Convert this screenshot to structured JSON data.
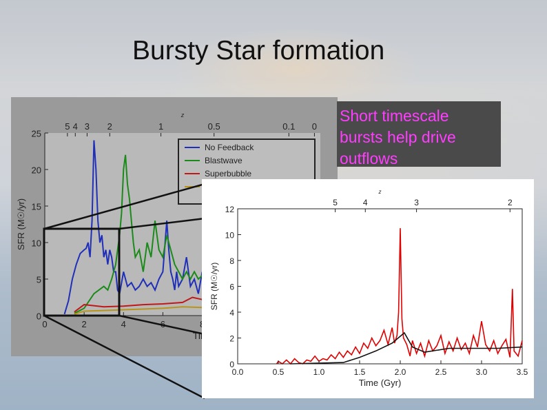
{
  "slide": {
    "title": "Bursty Star formation",
    "callout": [
      "Short timescale",
      "bursts help drive",
      "outflows"
    ]
  },
  "colors": {
    "callout_bg": "#4a4a4a",
    "callout_text": "#ff3cff",
    "no_feedback": "#1f2fb8",
    "blastwave": "#1a8a1a",
    "superbubble": "#c01818",
    "other": "#b8941a",
    "zoom_line": "#e00000"
  },
  "chart_data": [
    {
      "type": "line",
      "xlabel": "Time (Gyr)",
      "ylabel": "SFR (M☉/yr)",
      "top_axis_label": "z",
      "xlim": [
        0,
        14
      ],
      "ylim": [
        0,
        25
      ],
      "x_ticks": [
        0,
        2,
        4,
        6,
        8
      ],
      "x_tick_labels": [
        "0",
        "2",
        "4",
        "6",
        "8"
      ],
      "y_ticks": [
        0,
        5,
        10,
        15,
        20,
        25
      ],
      "y_tick_labels": [
        "0",
        "5",
        "10",
        "15",
        "20",
        "25"
      ],
      "top_ticks": [
        {
          "label": "5",
          "t": 1.15
        },
        {
          "label": "4",
          "t": 1.55
        },
        {
          "label": "3",
          "t": 2.15
        },
        {
          "label": "2",
          "t": 3.3
        },
        {
          "label": "1",
          "t": 5.9
        },
        {
          "label": "0.5",
          "t": 8.6
        },
        {
          "label": "0.1",
          "t": 12.4
        },
        {
          "label": "0",
          "t": 13.7
        }
      ],
      "legend": [
        "No Feedback",
        "Blastwave",
        "Superbubble",
        ""
      ],
      "series": [
        {
          "name": "No Feedback",
          "color": "#1f2fb8",
          "x": [
            1,
            1.2,
            1.4,
            1.6,
            1.8,
            2.0,
            2.1,
            2.2,
            2.3,
            2.4,
            2.5,
            2.6,
            2.7,
            2.8,
            2.9,
            3.0,
            3.1,
            3.2,
            3.3,
            3.4,
            3.5,
            3.6,
            3.7,
            3.8,
            4.0,
            4.2,
            4.4,
            4.6,
            4.8,
            5.0,
            5.2,
            5.4,
            5.6,
            5.8,
            6.0,
            6.2,
            6.3,
            6.4,
            6.5,
            6.6,
            6.7,
            6.8,
            7.0,
            7.2,
            7.4,
            7.6,
            7.8,
            8.0
          ],
          "y": [
            0.2,
            2,
            5,
            7,
            8.5,
            9,
            9.2,
            10,
            8,
            13,
            24,
            20,
            13,
            10,
            11,
            8,
            9,
            7,
            9,
            8,
            6,
            6,
            3.5,
            3,
            6,
            4,
            4.5,
            3.5,
            4,
            5,
            4,
            4.5,
            3.5,
            5,
            6,
            13,
            9,
            6,
            5,
            3.5,
            6,
            4,
            5,
            8,
            4,
            5,
            3,
            6
          ]
        },
        {
          "name": "Blastwave",
          "color": "#1a8a1a",
          "x": [
            1.5,
            2.0,
            2.5,
            3.0,
            3.2,
            3.4,
            3.5,
            3.6,
            3.7,
            3.8,
            3.9,
            4.0,
            4.1,
            4.2,
            4.3,
            4.4,
            4.5,
            4.6,
            4.8,
            5.0,
            5.2,
            5.4,
            5.6,
            5.8,
            6.0,
            6.2,
            6.4,
            6.6,
            6.8,
            7.0,
            7.2,
            7.4,
            7.6,
            7.8,
            8.0
          ],
          "y": [
            0.3,
            1,
            3,
            4,
            3.5,
            5,
            6,
            7,
            9,
            11,
            14,
            20,
            22,
            18,
            16,
            13,
            10,
            8,
            9,
            6,
            10,
            8,
            13,
            9,
            8,
            11,
            9,
            7,
            6,
            5,
            6,
            5,
            6,
            5,
            5.5
          ]
        },
        {
          "name": "Superbubble",
          "color": "#c01818",
          "x": [
            1.5,
            2,
            3,
            4,
            5,
            6,
            7,
            7.5,
            8
          ],
          "y": [
            0.5,
            1.5,
            1.2,
            1.3,
            1.5,
            1.6,
            1.8,
            2.5,
            2.2
          ]
        },
        {
          "name": "",
          "color": "#b8941a",
          "x": [
            1.5,
            2,
            3,
            4,
            5,
            6,
            7,
            8
          ],
          "y": [
            0.2,
            0.6,
            0.7,
            0.8,
            0.9,
            1.0,
            1.2,
            1.1
          ]
        }
      ]
    },
    {
      "type": "line",
      "xlabel": "Time (Gyr)",
      "ylabel": "SFR (M☉/yr)",
      "top_axis_label": "z",
      "xlim": [
        0,
        3.5
      ],
      "ylim": [
        0,
        12
      ],
      "x_ticks": [
        0,
        0.5,
        1,
        1.5,
        2,
        2.5,
        3,
        3.5
      ],
      "x_tick_labels": [
        "0.0",
        "0.5",
        "1.0",
        "1.5",
        "2.0",
        "2.5",
        "3.0",
        "3.5"
      ],
      "y_ticks": [
        0,
        2,
        4,
        6,
        8,
        10,
        12
      ],
      "y_tick_labels": [
        "0",
        "2",
        "4",
        "6",
        "8",
        "10",
        "12"
      ],
      "top_ticks": [
        {
          "label": "5",
          "t": 1.2
        },
        {
          "label": "4",
          "t": 1.57
        },
        {
          "label": "3",
          "t": 2.2
        },
        {
          "label": "2",
          "t": 3.35
        }
      ],
      "series": [
        {
          "name": "",
          "color": "#e00000",
          "x": [
            0.48,
            0.5,
            0.55,
            0.6,
            0.65,
            0.7,
            0.75,
            0.8,
            0.85,
            0.9,
            0.95,
            1.0,
            1.05,
            1.1,
            1.15,
            1.2,
            1.25,
            1.3,
            1.35,
            1.4,
            1.45,
            1.5,
            1.55,
            1.6,
            1.65,
            1.7,
            1.75,
            1.8,
            1.85,
            1.9,
            1.93,
            1.96,
            1.98,
            2.0,
            2.02,
            2.04,
            2.08,
            2.12,
            2.15,
            2.2,
            2.25,
            2.3,
            2.35,
            2.4,
            2.45,
            2.5,
            2.55,
            2.6,
            2.65,
            2.7,
            2.75,
            2.8,
            2.85,
            2.9,
            2.95,
            3.0,
            3.05,
            3.1,
            3.15,
            3.2,
            3.25,
            3.3,
            3.35,
            3.38,
            3.4,
            3.45,
            3.5
          ],
          "y": [
            0,
            0.2,
            0,
            0.3,
            0,
            0.4,
            0.1,
            0,
            0.3,
            0.2,
            0.6,
            0.2,
            0.4,
            0.3,
            0.7,
            0.4,
            0.9,
            0.5,
            1.0,
            0.7,
            1.3,
            0.8,
            1.6,
            1.2,
            2.0,
            1.4,
            1.8,
            2.6,
            1.5,
            2.8,
            1.6,
            2.2,
            4.0,
            10.5,
            3.5,
            2.0,
            1.5,
            0.6,
            1.8,
            0.8,
            1.6,
            0.6,
            1.8,
            1.0,
            1.4,
            2.2,
            0.8,
            1.7,
            1.0,
            2.0,
            1.1,
            1.6,
            0.8,
            2.2,
            1.3,
            3.3,
            1.5,
            1.0,
            1.8,
            0.8,
            1.4,
            1.9,
            0.5,
            5.8,
            1.0,
            0.6,
            1.8
          ]
        },
        {
          "name": "",
          "color": "#111111",
          "x": [
            0.65,
            1.3,
            1.5,
            1.7,
            1.9,
            2.05,
            2.15,
            2.3,
            2.6,
            2.9,
            3.2,
            3.5
          ],
          "y": [
            0.0,
            0.1,
            0.5,
            1.0,
            1.6,
            2.4,
            1.3,
            0.9,
            1.2,
            1.2,
            1.2,
            1.3
          ]
        }
      ]
    }
  ]
}
